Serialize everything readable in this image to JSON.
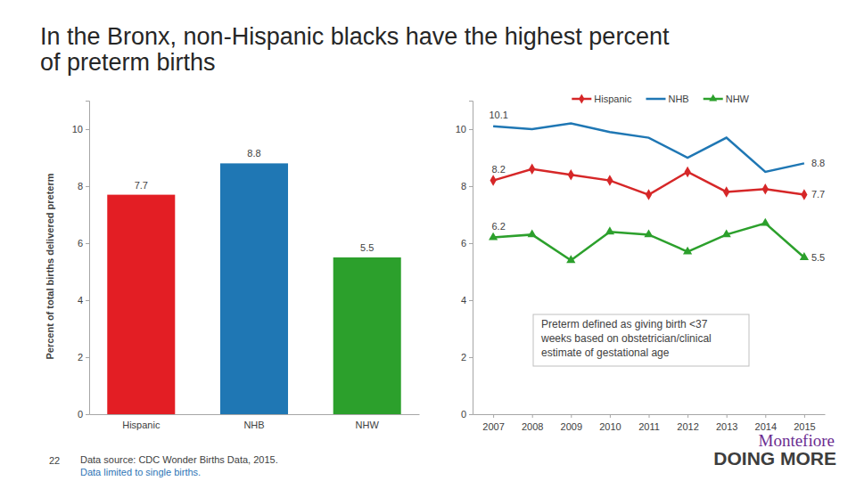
{
  "page": {
    "title": [
      "In the Bronx, non-Hispanic blacks have the highest percent",
      "of preterm births"
    ],
    "page_number": 22,
    "source": [
      "Data source: CDC Wonder Births Data, 2015.",
      "Data limited to single births."
    ],
    "logo": [
      "Montefiore",
      "DOING MORE"
    ]
  },
  "chart_data": [
    {
      "type": "bar",
      "categories": [
        "Hispanic",
        "NHB",
        "NHW"
      ],
      "values": [
        7.7,
        8.8,
        5.5
      ],
      "colors": [
        "#e31e24",
        "#1f77b4",
        "#2ca02c"
      ],
      "y_label": "Percent of total births delivered preterm",
      "ylim": [
        0,
        11
      ],
      "yticks": [
        0,
        2,
        4,
        6,
        8,
        10
      ],
      "grid": false,
      "data_labels": true
    },
    {
      "type": "line",
      "categories": [
        "2007",
        "2008",
        "2009",
        "2010",
        "2011",
        "2012",
        "2013",
        "2014",
        "2015"
      ],
      "series": [
        {
          "name": "Hispanic",
          "color": "#d62728",
          "marker": "diamond",
          "values": [
            8.2,
            8.6,
            8.4,
            8.2,
            7.7,
            8.5,
            7.8,
            7.9,
            7.7
          ],
          "value_labels": [
            "8.2",
            null,
            null,
            null,
            null,
            null,
            null,
            null,
            "7.7"
          ]
        },
        {
          "name": "NHB",
          "color": "#1f77b4",
          "marker": "none",
          "values": [
            10.1,
            10.0,
            10.2,
            9.9,
            9.7,
            9.0,
            9.7,
            8.5,
            8.8
          ],
          "value_labels": [
            "10.1",
            null,
            null,
            null,
            null,
            null,
            null,
            null,
            "8.8"
          ]
        },
        {
          "name": "NHW",
          "color": "#2ca02c",
          "marker": "triangle",
          "values": [
            6.2,
            6.3,
            5.4,
            6.4,
            6.3,
            5.7,
            6.3,
            6.7,
            5.5
          ],
          "value_labels": [
            "6.2",
            null,
            null,
            null,
            null,
            null,
            null,
            null,
            "5.5"
          ]
        }
      ],
      "ylim": [
        0,
        11
      ],
      "yticks": [
        0,
        2,
        4,
        6,
        8,
        10
      ],
      "grid": false,
      "legend": "top-right",
      "data_labels": true,
      "annotation": [
        "Preterm defined as giving birth <37",
        "weeks based on obstetrician/clinical",
        "estimate of gestational age"
      ]
    }
  ]
}
